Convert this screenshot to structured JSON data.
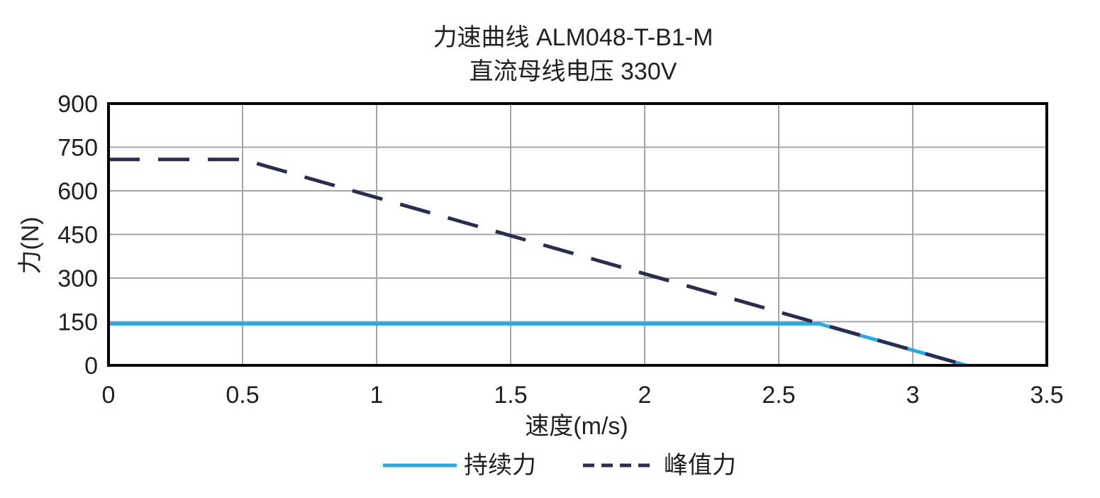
{
  "chart_data": {
    "type": "line",
    "title": "力速曲线 ALM048-T-B1-M",
    "subtitle": "直流母线电压 330V",
    "xlabel": "速度(m/s)",
    "ylabel": "力(N)",
    "xlim": [
      0,
      3.5
    ],
    "ylim": [
      0,
      900
    ],
    "xticks": [
      "0",
      "0.5",
      "1",
      "1.5",
      "2",
      "2.5",
      "3",
      "3.5"
    ],
    "yticks": [
      "0",
      "150",
      "300",
      "450",
      "600",
      "750",
      "900"
    ],
    "xtick_values": [
      0,
      0.5,
      1,
      1.5,
      2,
      2.5,
      3,
      3.5
    ],
    "ytick_values": [
      0,
      150,
      300,
      450,
      600,
      750,
      900
    ],
    "grid": true,
    "legend_position": "bottom-center",
    "series": [
      {
        "name": "持续力",
        "style": "solid",
        "color": "#29a9e0",
        "x": [
          0,
          2.65,
          3.2
        ],
        "y": [
          143,
          143,
          0
        ]
      },
      {
        "name": "峰值力",
        "style": "dashed",
        "color": "#2a2d4f",
        "x": [
          0,
          0.5,
          3.2
        ],
        "y": [
          708,
          708,
          0
        ]
      }
    ]
  }
}
